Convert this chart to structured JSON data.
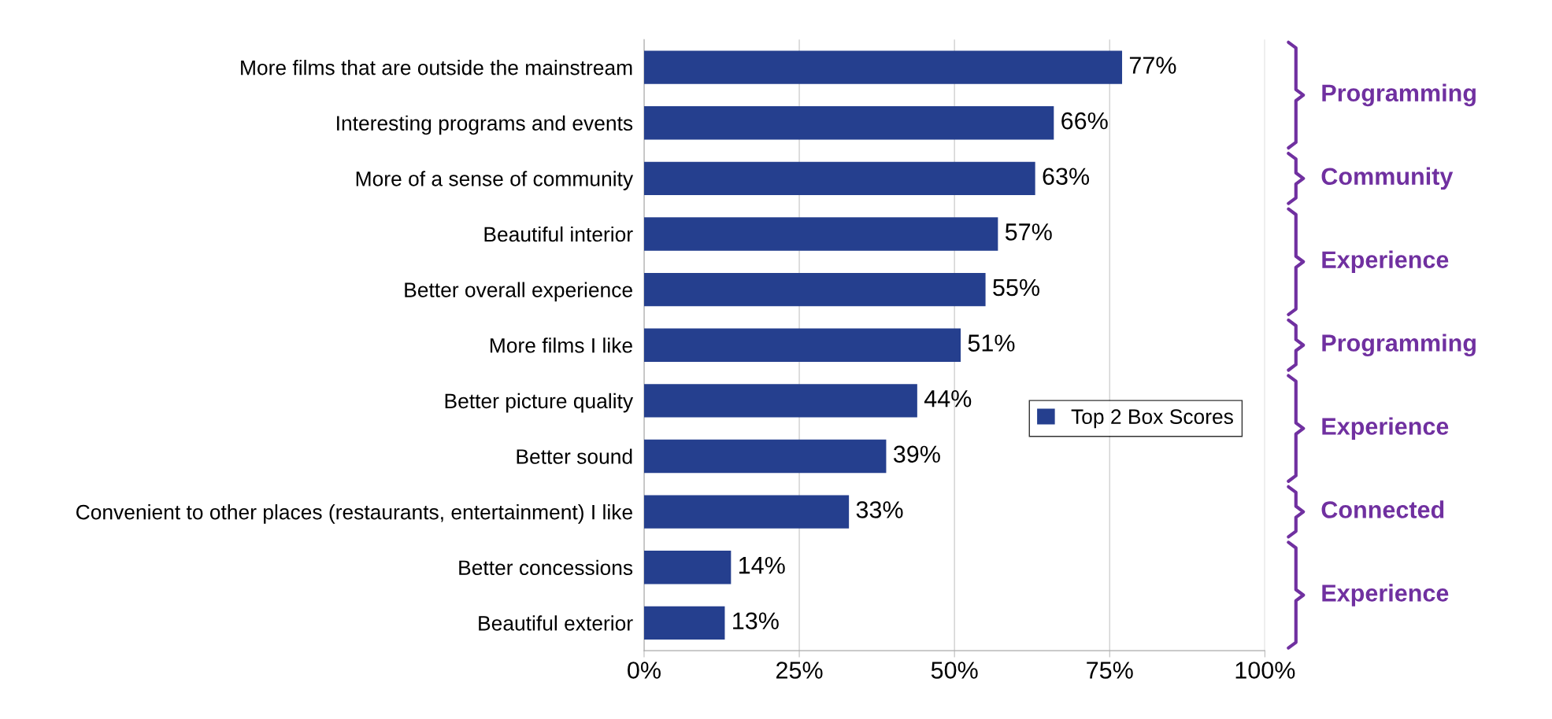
{
  "chart_data": {
    "type": "bar",
    "orientation": "horizontal",
    "categories": [
      "More films that are outside the mainstream",
      "Interesting programs and events",
      "More of a sense of community",
      "Beautiful interior",
      "Better overall experience",
      "More films I like",
      "Better picture quality",
      "Better sound",
      "Convenient to other places (restaurants, entertainment) I like",
      "Better concessions",
      "Beautiful exterior"
    ],
    "series": [
      {
        "name": "Top 2 Box Scores",
        "color": "#253f8e",
        "values": [
          77,
          66,
          63,
          57,
          55,
          51,
          44,
          39,
          33,
          14,
          13
        ],
        "value_labels": [
          "77%",
          "66%",
          "63%",
          "57%",
          "55%",
          "51%",
          "44%",
          "39%",
          "33%",
          "14%",
          "13%"
        ]
      }
    ],
    "xlim": [
      0,
      100
    ],
    "xticks": [
      {
        "value": 0,
        "label": "0%"
      },
      {
        "value": 25,
        "label": "25%"
      },
      {
        "value": 50,
        "label": "50%"
      },
      {
        "value": 75,
        "label": "75%"
      },
      {
        "value": 100,
        "label": "100%"
      }
    ],
    "grid": "x",
    "legend": "center right",
    "annotations": [
      "Programming",
      "Community",
      "Experience",
      "Programming",
      "Experience",
      "Connected",
      "Experience"
    ]
  }
}
